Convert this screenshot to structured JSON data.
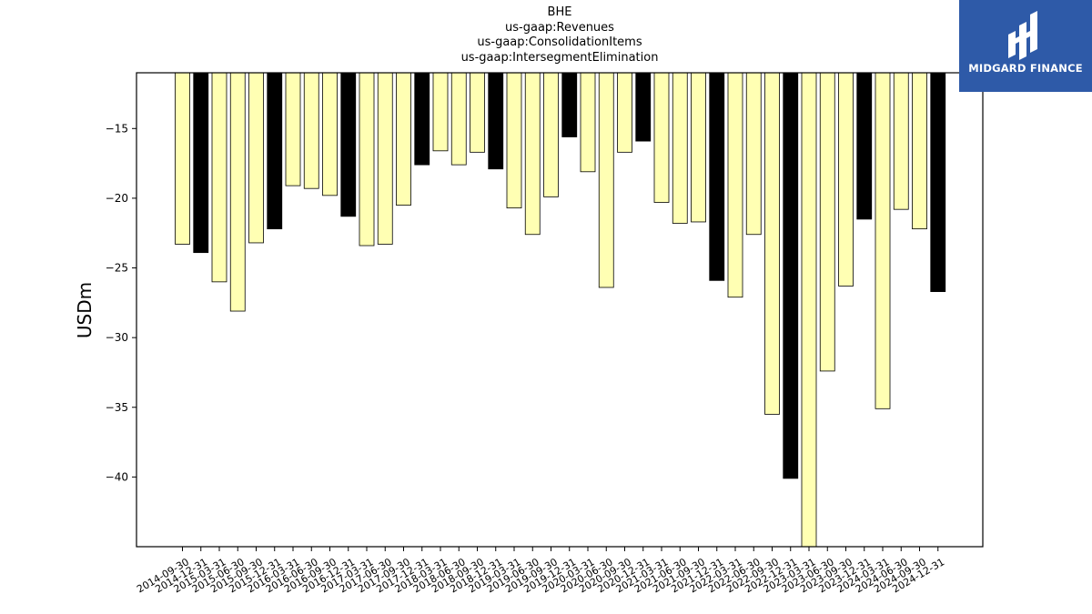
{
  "title_lines": [
    "BHE",
    "us-gaap:Revenues",
    "us-gaap:ConsolidationItems",
    "us-gaap:IntersegmentElimination"
  ],
  "brand": {
    "name": "MIDGARD FINANCE",
    "logo_icon": "midgard-logo-icon",
    "color": "#2e5aa8"
  },
  "colors": {
    "regular": "#ffffb3",
    "annual": "#000000",
    "edge": "#000000"
  },
  "chart_data": {
    "type": "bar",
    "title": "BHE\nus-gaap:Revenues\nus-gaap:ConsolidationItems\nus-gaap:IntersegmentElimination",
    "ylabel": "USDm",
    "xlabel": "",
    "ylim": [
      -45,
      -11
    ],
    "yticks": [
      -15,
      -20,
      -25,
      -30,
      -35,
      -40
    ],
    "grid": false,
    "legend": "none",
    "categories": [
      "2014-09-30",
      "2014-12-31",
      "2015-03-31",
      "2015-06-30",
      "2015-09-30",
      "2015-12-31",
      "2016-03-31",
      "2016-06-30",
      "2016-09-30",
      "2016-12-31",
      "2017-03-31",
      "2017-06-30",
      "2017-09-30",
      "2017-12-31",
      "2018-03-31",
      "2018-06-30",
      "2018-09-30",
      "2018-12-31",
      "2019-03-31",
      "2019-06-30",
      "2019-09-30",
      "2019-12-31",
      "2020-03-31",
      "2020-06-30",
      "2020-09-30",
      "2020-12-31",
      "2021-03-31",
      "2021-06-30",
      "2021-09-30",
      "2021-12-31",
      "2022-03-31",
      "2022-06-30",
      "2022-09-30",
      "2022-12-31",
      "2023-03-31",
      "2023-06-30",
      "2023-09-30",
      "2023-12-31",
      "2024-03-31",
      "2024-06-30",
      "2024-09-30",
      "2024-12-31"
    ],
    "values": [
      -23.3,
      -23.9,
      -26.0,
      -28.1,
      -23.2,
      -22.2,
      -19.1,
      -19.3,
      -19.8,
      -21.3,
      -23.4,
      -23.3,
      -20.5,
      -17.6,
      -16.6,
      -17.6,
      -16.7,
      -17.9,
      -20.7,
      -22.6,
      -19.9,
      -15.6,
      -18.1,
      -26.4,
      -16.7,
      -15.9,
      -20.3,
      -21.8,
      -21.7,
      -25.9,
      -27.1,
      -22.6,
      -35.5,
      -40.1,
      -45.0,
      -32.4,
      -26.3,
      -21.5,
      -35.1,
      -20.8,
      -22.2,
      -26.7
    ],
    "annual_flags": [
      false,
      true,
      false,
      false,
      false,
      true,
      false,
      false,
      false,
      true,
      false,
      false,
      false,
      true,
      false,
      false,
      false,
      true,
      false,
      false,
      false,
      true,
      false,
      false,
      false,
      true,
      false,
      false,
      false,
      true,
      false,
      false,
      false,
      true,
      false,
      false,
      false,
      true,
      false,
      false,
      false,
      true
    ]
  }
}
